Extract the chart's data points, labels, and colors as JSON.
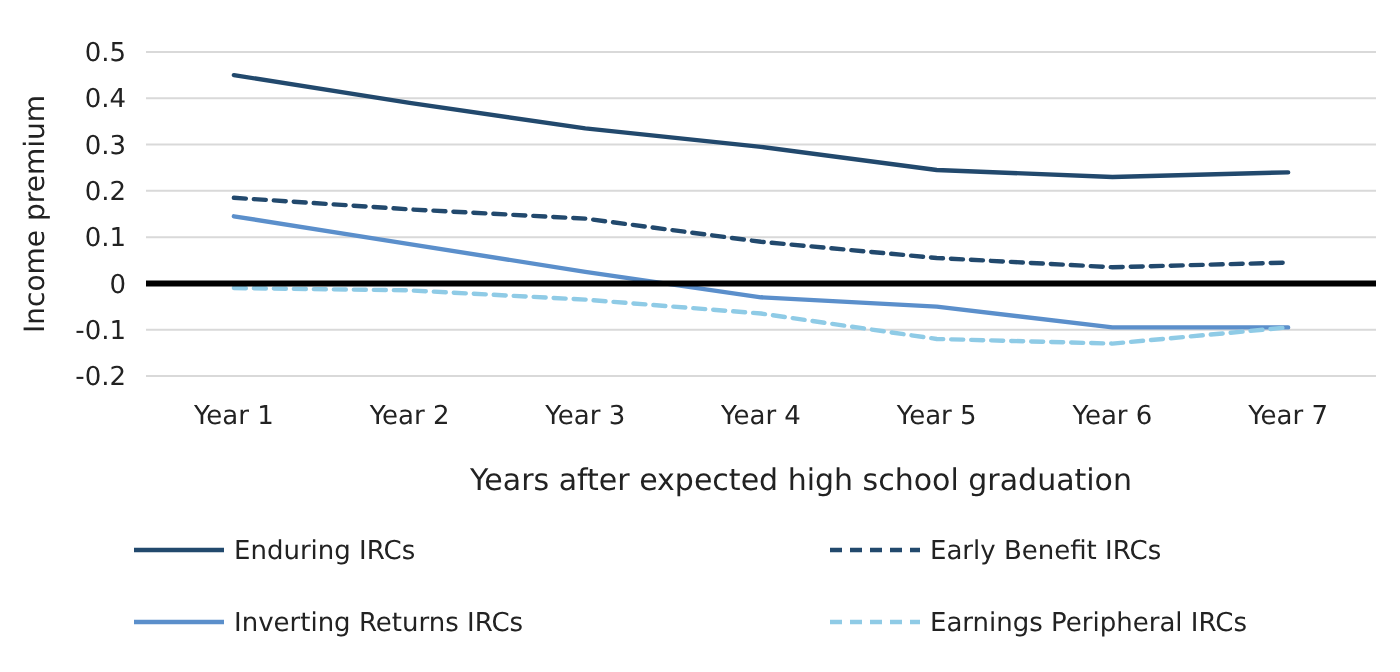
{
  "chart_data": {
    "type": "line",
    "categories": [
      "Year 1",
      "Year 2",
      "Year 3",
      "Year 4",
      "Year 5",
      "Year 6",
      "Year 7"
    ],
    "xlabel": "Years after expected high school graduation",
    "ylabel": "Income premium",
    "ylim": [
      -0.2,
      0.5
    ],
    "yticks": [
      {
        "value": -0.2,
        "label": "-0.2"
      },
      {
        "value": -0.1,
        "label": "-0.1"
      },
      0,
      0.1,
      0.2,
      0.3,
      0.4,
      0.5
    ],
    "grid": "y",
    "legend": "bottom",
    "marker": "none",
    "ref_lines": [
      {
        "axis": "y",
        "value": 0,
        "label": null,
        "color": "#000000"
      }
    ],
    "series": [
      {
        "name": "Enduring IRCs",
        "color": "#22496d",
        "line_style": "solid",
        "values": [
          0.45,
          0.39,
          0.335,
          0.295,
          0.245,
          0.23,
          0.24
        ]
      },
      {
        "name": "Early Benefit IRCs",
        "color": "#22496d",
        "line_style": "dashed",
        "values": [
          0.185,
          0.16,
          0.14,
          0.09,
          0.055,
          0.035,
          0.045
        ]
      },
      {
        "name": "Inverting Returns IRCs",
        "color": "#5b8fcb",
        "line_style": "solid",
        "values": [
          0.145,
          0.085,
          0.025,
          -0.03,
          -0.05,
          -0.095,
          -0.095
        ]
      },
      {
        "name": "Earnings Peripheral IRCs",
        "color": "#8fcbe6",
        "line_style": "dashed",
        "values": [
          -0.01,
          -0.015,
          -0.035,
          -0.065,
          -0.12,
          -0.13,
          -0.095
        ]
      }
    ]
  }
}
